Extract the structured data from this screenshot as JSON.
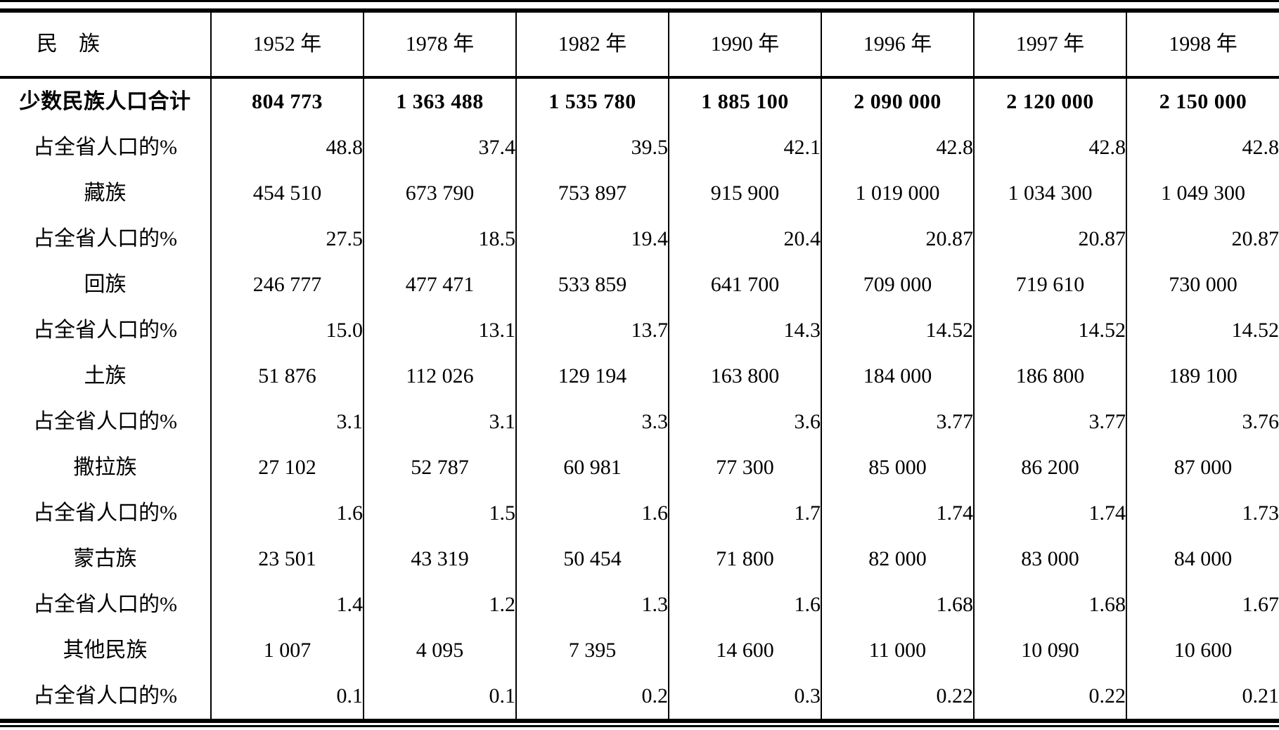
{
  "table": {
    "title_column_header": "民　族",
    "header": [
      "民　族",
      "1952 年",
      "1978 年",
      "1982 年",
      "1990 年",
      "1996 年",
      "1997 年",
      "1998 年"
    ],
    "percent_row_label": "占全省人口的%",
    "rows": [
      {
        "label": "少数民族人口合计",
        "type": "population",
        "total": true,
        "values": [
          "804 773",
          "1 363 488",
          "1 535 780",
          "1 885 100",
          "2 090 000",
          "2 120 000",
          "2 150 000"
        ]
      },
      {
        "label": "占全省人口的%",
        "type": "percent",
        "total": false,
        "values": [
          "48.8",
          "37.4",
          "39.5",
          "42.1",
          "42.8",
          "42.8",
          "42.8"
        ]
      },
      {
        "label": "藏族",
        "type": "population",
        "total": false,
        "values": [
          "454 510",
          "673 790",
          "753 897",
          "915 900",
          "1 019 000",
          "1 034 300",
          "1 049 300"
        ]
      },
      {
        "label": "占全省人口的%",
        "type": "percent",
        "total": false,
        "values": [
          "27.5",
          "18.5",
          "19.4",
          "20.4",
          "20.87",
          "20.87",
          "20.87"
        ]
      },
      {
        "label": "回族",
        "type": "population",
        "total": false,
        "values": [
          "246 777",
          "477 471",
          "533 859",
          "641 700",
          "709 000",
          "719 610",
          "730 000"
        ]
      },
      {
        "label": "占全省人口的%",
        "type": "percent",
        "total": false,
        "values": [
          "15.0",
          "13.1",
          "13.7",
          "14.3",
          "14.52",
          "14.52",
          "14.52"
        ]
      },
      {
        "label": "土族",
        "type": "population",
        "total": false,
        "values": [
          "51 876",
          "112 026",
          "129 194",
          "163 800",
          "184 000",
          "186 800",
          "189 100"
        ]
      },
      {
        "label": "占全省人口的%",
        "type": "percent",
        "total": false,
        "values": [
          "3.1",
          "3.1",
          "3.3",
          "3.6",
          "3.77",
          "3.77",
          "3.76"
        ]
      },
      {
        "label": "撒拉族",
        "type": "population",
        "total": false,
        "values": [
          "27 102",
          "52 787",
          "60 981",
          "77 300",
          "85 000",
          "86 200",
          "87 000"
        ]
      },
      {
        "label": "占全省人口的%",
        "type": "percent",
        "total": false,
        "values": [
          "1.6",
          "1.5",
          "1.6",
          "1.7",
          "1.74",
          "1.74",
          "1.73"
        ]
      },
      {
        "label": "蒙古族",
        "type": "population",
        "total": false,
        "values": [
          "23 501",
          "43 319",
          "50 454",
          "71 800",
          "82 000",
          "83 000",
          "84 000"
        ]
      },
      {
        "label": "占全省人口的%",
        "type": "percent",
        "total": false,
        "values": [
          "1.4",
          "1.2",
          "1.3",
          "1.6",
          "1.68",
          "1.68",
          "1.67"
        ]
      },
      {
        "label": "其他民族",
        "type": "population",
        "total": false,
        "values": [
          "1 007",
          "4 095",
          "7 395",
          "14 600",
          "11 000",
          "10 090",
          "10 600"
        ]
      },
      {
        "label": "占全省人口的%",
        "type": "percent",
        "total": false,
        "values": [
          "0.1",
          "0.1",
          "0.2",
          "0.3",
          "0.22",
          "0.22",
          "0.21"
        ]
      }
    ],
    "colors": {
      "ink": "#000000",
      "paper": "#ffffff"
    }
  }
}
